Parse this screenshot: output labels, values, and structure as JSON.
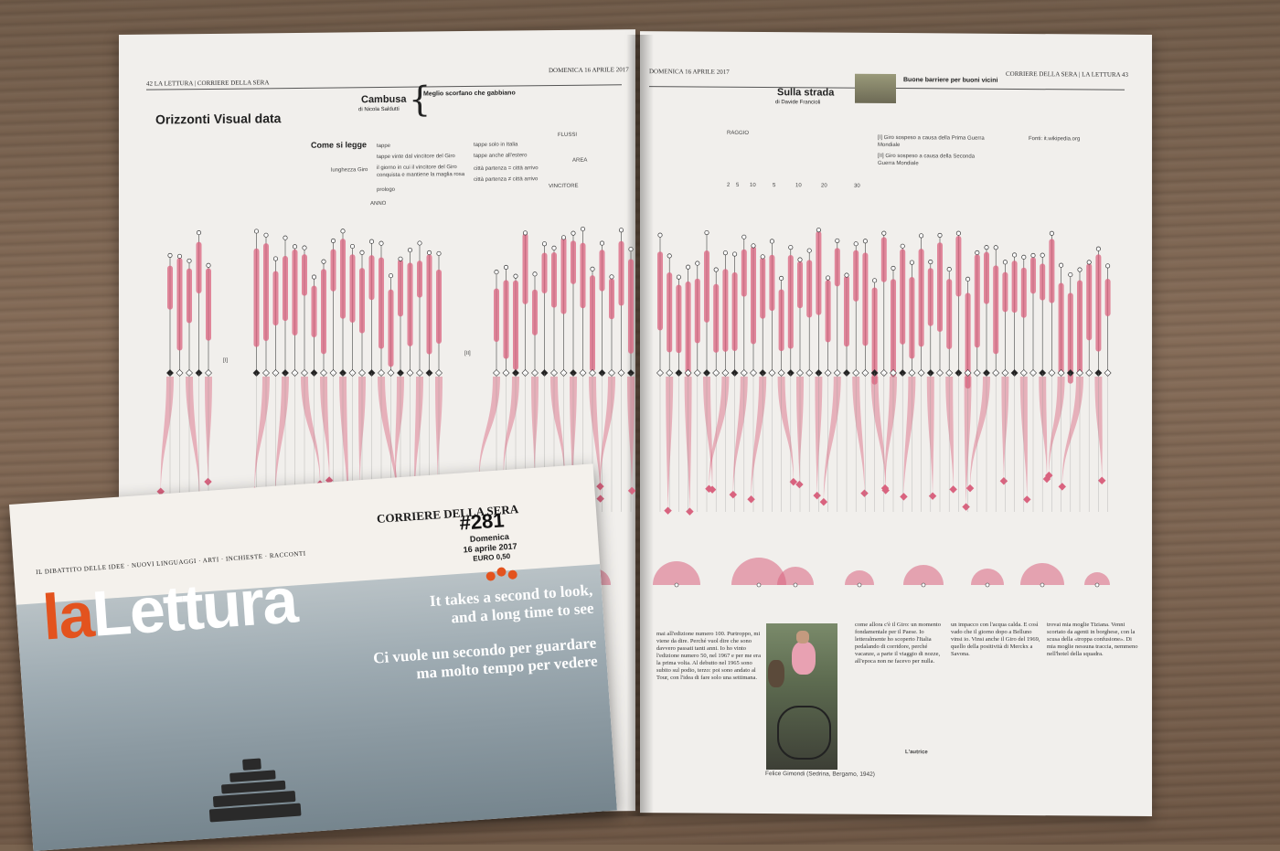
{
  "left_page": {
    "folio": "42 LA LETTURA | CORRIERE DELLA SERA",
    "date": "DOMENICA 16 APRILE 2017",
    "title": "Orizzonti Visual data",
    "cambusa": "Cambusa",
    "cambusa_author": "di Nicola Saldutti",
    "cambusa_headline": "Meglio scorfano che gabbiano",
    "legend_title": "Come si legge",
    "legend_items": [
      "tappe",
      "tappe vinte dal vincitore del Giro",
      "il giorno in cui il vincitore del Giro conquista e mantiene la maglia rosa",
      "prologo",
      "tappe solo in Italia",
      "tappe anche all'estero",
      "città partenza = città arrivo",
      "città partenza ≠ città arrivo"
    ],
    "legend_side": "lunghezza Giro",
    "legend_anno": "ANNO",
    "flussi": "FLUSSI",
    "vincitore": "VINCITORE",
    "area": "AREA",
    "note_1": "[I]",
    "note_2": "[II]"
  },
  "right_page": {
    "folio": "CORRIERE DELLA SERA | LA LETTURA 43",
    "date": "DOMENICA 16 APRILE 2017",
    "sulla_strada": "Sulla strada",
    "sulla_author": "di Davide Francioli",
    "sulla_headline": "Buone barriere per buoni vicini",
    "raggio": "RAGGIO",
    "raggio_values": [
      "2",
      "5",
      "10"
    ],
    "raggio2_values": [
      "5",
      "10",
      "20",
      "30"
    ],
    "note_i": "[I] Giro sospeso a causa della Prima Guerra Mondiale",
    "note_ii": "[II] Giro sospeso a causa della Seconda Guerra Mondiale",
    "fonti": "Fonti: it.wikipedia.org",
    "caption": "Felice Gimondi (Sedrina, Bergamo, 1942)",
    "autrice": "L'autrice"
  },
  "magazine": {
    "masthead": "CORRIERE DELLA SERA",
    "issue": "#281",
    "day": "Domenica",
    "date": "16 aprile 2017",
    "price": "EURO 0,50",
    "logo_la": "la",
    "logo_rest": "Lettura",
    "sections": "IL DIBATTITO DELLE IDEE · NUOVI LINGUAGGI · ARTI · INCHIESTE · RACCONTI",
    "tagline_en_1": "It takes a second to look,",
    "tagline_en_2": "and a long time to see",
    "tagline_it_1": "Ci vuole un secondo per guardare",
    "tagline_it_2": "ma molto tempo per vedere"
  },
  "colors": {
    "accent_pink": "#d9637f",
    "logo_orange": "#e3531e"
  }
}
